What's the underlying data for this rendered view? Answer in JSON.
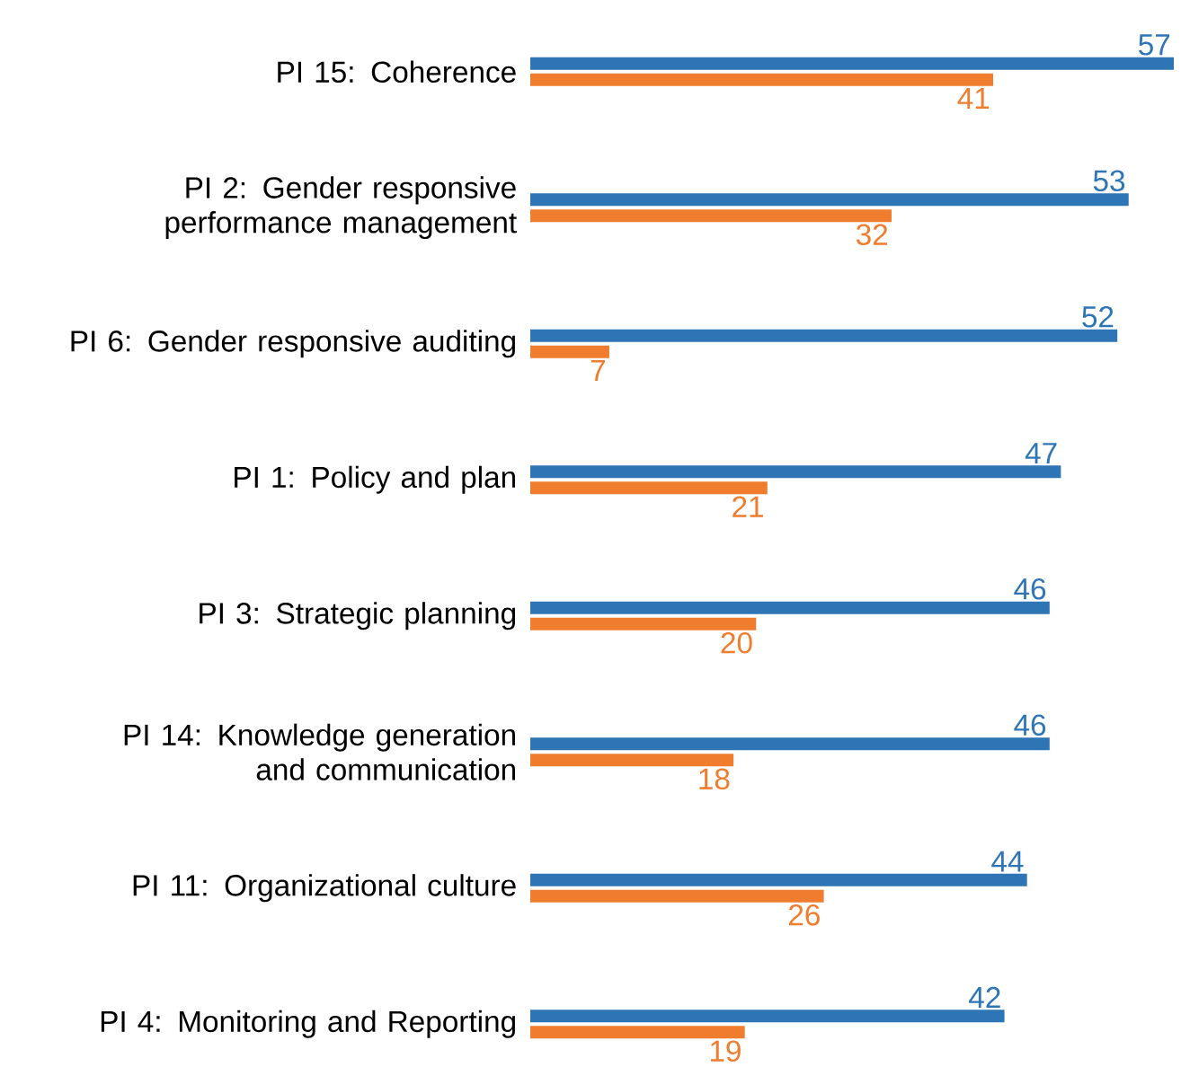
{
  "chart_data": {
    "type": "bar",
    "orientation": "horizontal",
    "data_labels": true,
    "categories": [
      "PI 15: Coherence",
      "PI 2: Gender responsive performance management",
      "PI 6: Gender responsive auditing",
      "PI 1: Policy and plan",
      "PI 3: Strategic planning",
      "PI 14: Knowledge generation and communication",
      "PI 11: Organizational culture",
      "PI 4: Monitoring and Reporting"
    ],
    "series": [
      {
        "color": "#2e75b6",
        "values": [
          57,
          53,
          52,
          47,
          46,
          46,
          44,
          42
        ]
      },
      {
        "color": "#f07c2e",
        "values": [
          41,
          32,
          7,
          21,
          20,
          18,
          26,
          19
        ]
      }
    ]
  }
}
